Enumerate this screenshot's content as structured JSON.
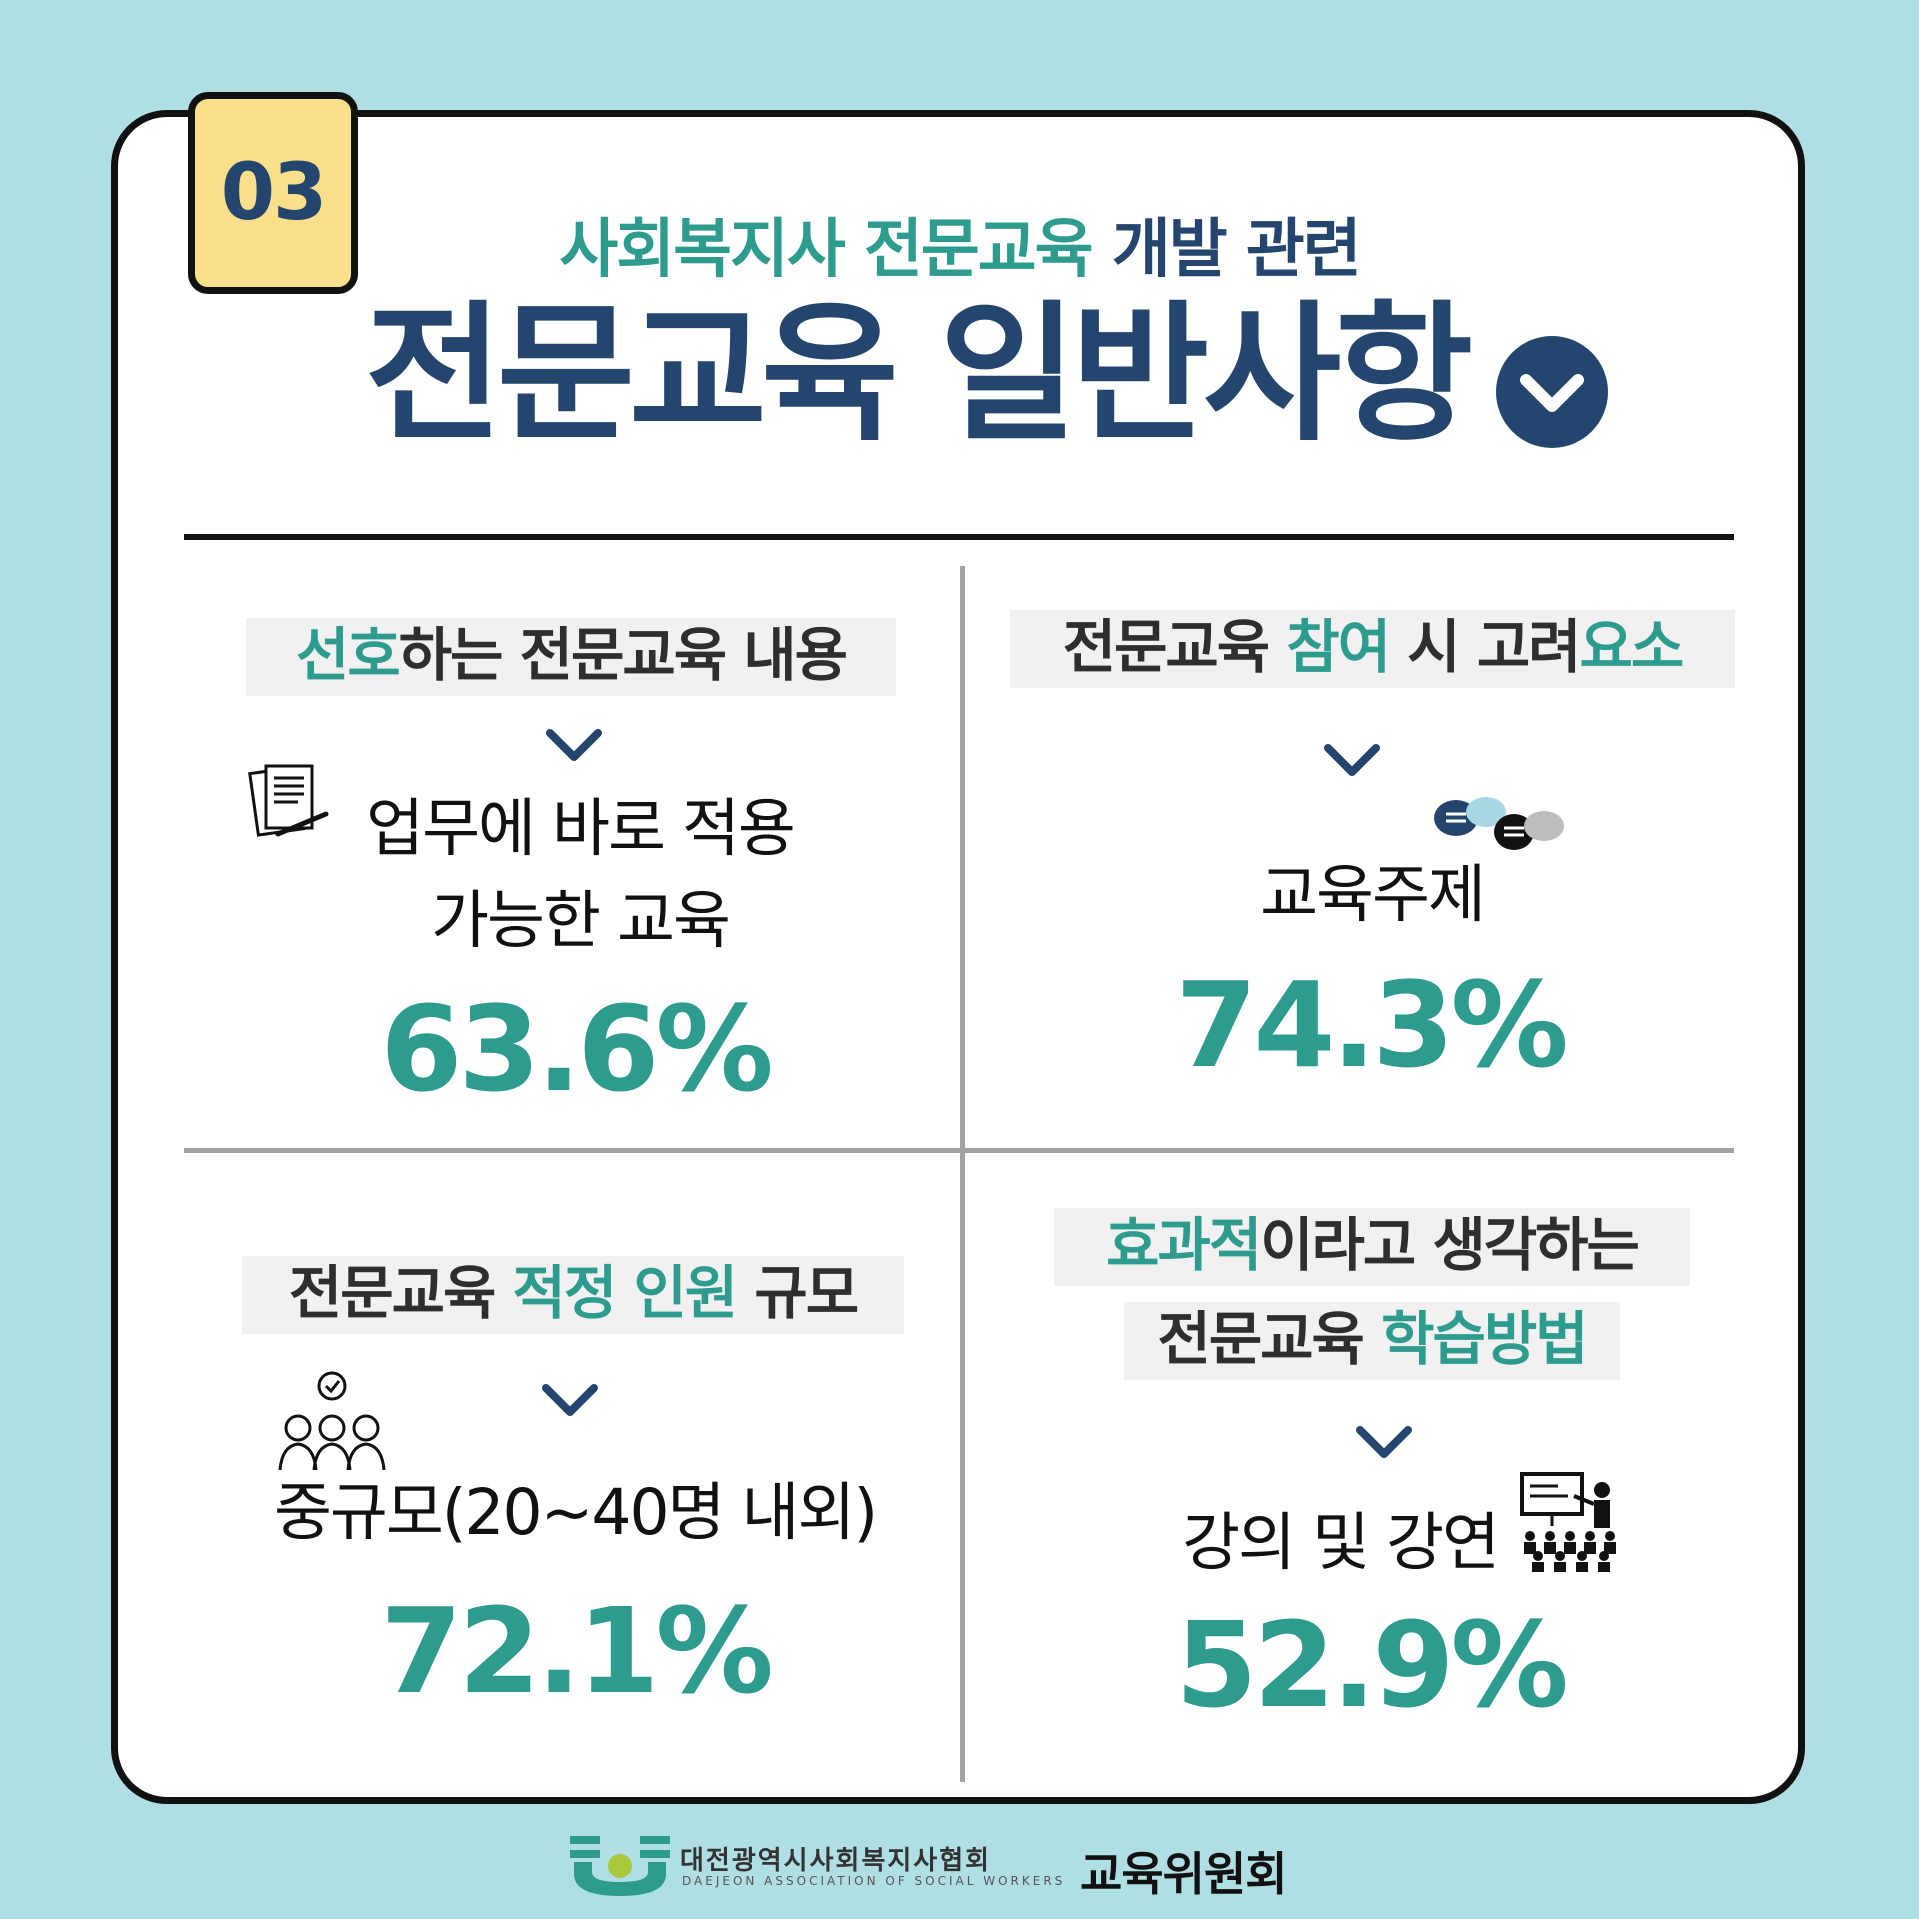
{
  "badge": "03",
  "subtitle": {
    "part1": "사회복지사 전문교육",
    "part2": "개발 관련"
  },
  "title": "전문교육 일반사항",
  "icons": {
    "title": "chevron-down-circle-icon",
    "chevron": "chevron-down-icon"
  },
  "colors": {
    "teal": "#2e9b8f",
    "navy": "#24466e",
    "badge": "#fbdf8a",
    "background": "#afdfe4"
  },
  "quadrants": {
    "q1": {
      "heading": {
        "a": "선호",
        "b": "하는 전문교육 내용"
      },
      "line1": "업무에 바로 적용",
      "line2": "가능한 교육",
      "percent": "63.6%",
      "icon": "document-pen-icon"
    },
    "q2": {
      "heading": {
        "a": "전문교육 ",
        "b": "참여",
        "c": " 시 고려",
        "d": "요소"
      },
      "line1": "교육주제",
      "percent": "74.3%",
      "icon": "chat-bubbles-icon"
    },
    "q3": {
      "heading": {
        "a": "전문교육 ",
        "b": "적정 인원",
        "c": " 규모"
      },
      "line1": "중규모(20~40명 내외)",
      "percent": "72.1%",
      "icon": "group-people-icon"
    },
    "q4": {
      "heading": {
        "a": "효과적",
        "b": "이라고 생각하는",
        "c": "전문교육 ",
        "d": "학습방법"
      },
      "line1": "강의 및 강연",
      "percent": "52.9%",
      "icon": "lecture-presentation-icon"
    }
  },
  "footer": {
    "org_ko": "대전광역시사회복지사협회",
    "org_en": "DAEJEON ASSOCIATION OF SOCIAL WORKERS",
    "committee": "교육위원회"
  }
}
